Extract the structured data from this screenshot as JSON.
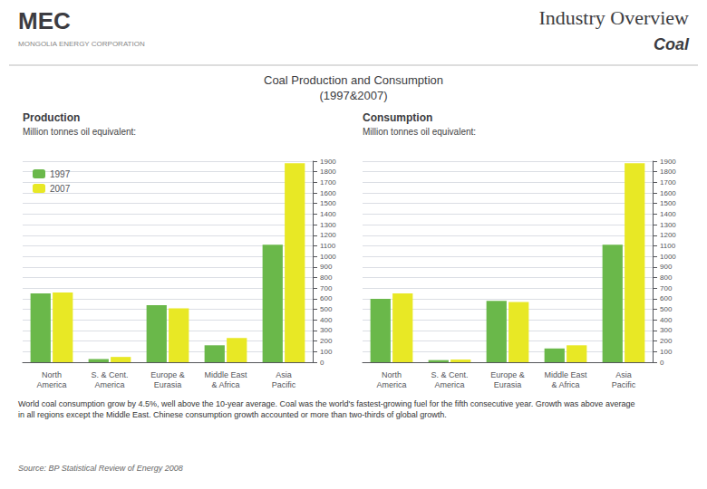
{
  "title": "Coal Production and Consumption\n(1997&2007)",
  "annotations": [
    "MEC",
    "MONGOLIA ENERGY CORPORATION",
    "Industry Overview",
    "Coal",
    "Source: BP Statistical Review of Energy 2008",
    "World coal consumption grow by 4.5%, well above the 10-year average. Coal was the world's fastest-growing fuel for the fifth consecutive year. Growth was above average\nin all regions except the Middle East. Chinese consumption growth accounted or more than two-thirds of global growth."
  ],
  "chart_data": [
    {
      "type": "bar",
      "title": "Production",
      "subtitle": "Million tonnes oil equivalent:",
      "categories": [
        "North\nAmerica",
        "S. & Cent.\nAmerica",
        "Europe &\nEurasia",
        "Middle East\n& Africa",
        "Asia\nPacific"
      ],
      "series": [
        {
          "name": "1997",
          "color": "#6ab84a",
          "values": [
            650,
            30,
            540,
            160,
            1110
          ]
        },
        {
          "name": "2007",
          "color": "#e8e825",
          "values": [
            660,
            50,
            510,
            230,
            1880
          ]
        }
      ],
      "ylim": [
        0,
        1900
      ],
      "yticks": [
        0,
        100,
        200,
        300,
        400,
        500,
        600,
        700,
        800,
        900,
        1000,
        1100,
        1200,
        1300,
        1400,
        1500,
        1600,
        1700,
        1800,
        1900
      ],
      "grid": true,
      "legend": "upper left"
    },
    {
      "type": "bar",
      "title": "Consumption",
      "subtitle": "Million tonnes oil equivalent:",
      "categories": [
        "North\nAmerica",
        "S. & Cent.\nAmerica",
        "Europe &\nEurasia",
        "Middle East\n& Africa",
        "Asia\nPacific"
      ],
      "series": [
        {
          "name": "1997",
          "color": "#6ab84a",
          "values": [
            600,
            20,
            580,
            130,
            1110
          ]
        },
        {
          "name": "2007",
          "color": "#e8e825",
          "values": [
            650,
            25,
            570,
            160,
            1880
          ]
        }
      ],
      "ylim": [
        0,
        1900
      ],
      "yticks": [
        0,
        100,
        200,
        300,
        400,
        500,
        600,
        700,
        800,
        900,
        1000,
        1100,
        1200,
        1300,
        1400,
        1500,
        1600,
        1700,
        1800,
        1900
      ],
      "grid": true
    }
  ]
}
